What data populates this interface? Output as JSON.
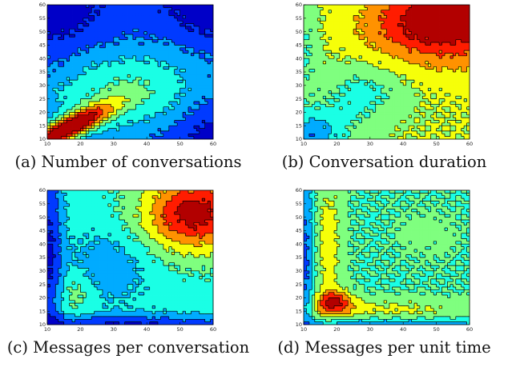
{
  "charts": [
    {
      "id": "a",
      "caption": "(a) Number of conversations",
      "chart_data": {
        "type": "heatmap",
        "title": "",
        "xlabel": "",
        "ylabel": "",
        "xlim": [
          10,
          60
        ],
        "ylim": [
          10,
          60
        ],
        "x_ticks": [
          10,
          20,
          30,
          40,
          50,
          60
        ],
        "y_ticks": [
          10,
          15,
          20,
          25,
          30,
          35,
          40,
          45,
          50,
          55,
          60
        ],
        "levels": 9,
        "colormap": "jet",
        "field": {
          "base": 0.16,
          "bumps": [
            {
              "x": 15,
              "y": 14,
              "a": 0.85,
              "sx": 9,
              "sy": 6,
              "rho": 0.85
            },
            {
              "x": 32,
              "y": 28,
              "a": 0.3,
              "sx": 18,
              "sy": 12,
              "rho": 0.25
            },
            {
              "x": 10,
              "y": 60,
              "a": -0.14,
              "sx": 10,
              "sy": 10,
              "rho": 0
            },
            {
              "x": 60,
              "y": 60,
              "a": -0.14,
              "sx": 10,
              "sy": 10,
              "rho": 0
            },
            {
              "x": 60,
              "y": 10,
              "a": -0.12,
              "sx": 8,
              "sy": 8,
              "rho": 0
            }
          ]
        }
      }
    },
    {
      "id": "b",
      "caption": "(b) Conversation duration",
      "chart_data": {
        "type": "heatmap",
        "title": "",
        "xlabel": "",
        "ylabel": "",
        "xlim": [
          10,
          60
        ],
        "ylim": [
          10,
          60
        ],
        "x_ticks": [
          10,
          20,
          30,
          40,
          50,
          60
        ],
        "y_ticks": [
          10,
          15,
          20,
          25,
          30,
          35,
          40,
          45,
          50,
          55,
          60
        ],
        "levels": 9,
        "colormap": "jet",
        "field": {
          "base": 0.56,
          "bumps": [
            {
              "x": 56,
              "y": 57,
              "a": 0.42,
              "sx": 14,
              "sy": 12,
              "rho": 0
            },
            {
              "x": 40,
              "y": 52,
              "a": 0.14,
              "sx": 12,
              "sy": 8,
              "rho": 0
            },
            {
              "x": 27,
              "y": 27,
              "a": -0.16,
              "sx": 9,
              "sy": 8,
              "rho": 0
            },
            {
              "x": 12,
              "y": 12,
              "a": -0.3,
              "sx": 7,
              "sy": 6,
              "rho": 0
            },
            {
              "x": 10,
              "y": 45,
              "a": -0.12,
              "sx": 3,
              "sy": 14,
              "rho": 0
            }
          ]
        }
      }
    },
    {
      "id": "c",
      "caption": "(c) Messages per conversation",
      "chart_data": {
        "type": "heatmap",
        "title": "",
        "xlabel": "",
        "ylabel": "",
        "xlim": [
          10,
          60
        ],
        "ylim": [
          10,
          60
        ],
        "x_ticks": [
          10,
          20,
          30,
          40,
          50,
          60
        ],
        "y_ticks": [
          10,
          15,
          20,
          25,
          30,
          35,
          40,
          45,
          50,
          55,
          60
        ],
        "levels": 9,
        "colormap": "jet",
        "field": {
          "base": 0.4,
          "bumps": [
            {
              "x": 54,
              "y": 52,
              "a": 0.55,
              "sx": 11,
              "sy": 10,
              "rho": 0
            },
            {
              "x": 28,
              "y": 32,
              "a": -0.14,
              "sx": 9,
              "sy": 10,
              "rho": 0
            },
            {
              "x": 10,
              "y": 38,
              "a": -0.3,
              "sx": 3,
              "sy": 30,
              "rho": 0
            },
            {
              "x": 36,
              "y": 10,
              "a": -0.3,
              "sx": 30,
              "sy": 3,
              "rho": 0
            },
            {
              "x": 18,
              "y": 22,
              "a": 0.12,
              "sx": 4,
              "sy": 6,
              "rho": 0
            }
          ]
        }
      }
    },
    {
      "id": "d",
      "caption": "(d) Messages per unit time",
      "chart_data": {
        "type": "heatmap",
        "title": "",
        "xlabel": "",
        "ylabel": "",
        "xlim": [
          10,
          60
        ],
        "ylim": [
          10,
          60
        ],
        "x_ticks": [
          10,
          20,
          30,
          40,
          50,
          60
        ],
        "y_ticks": [
          10,
          15,
          20,
          25,
          30,
          35,
          40,
          45,
          50,
          55,
          60
        ],
        "levels": 9,
        "colormap": "jet",
        "field": {
          "base": 0.44,
          "bumps": [
            {
              "x": 19,
              "y": 19,
              "a": 0.38,
              "sx": 4,
              "sy": 3,
              "rho": 0
            },
            {
              "x": 17,
              "y": 40,
              "a": 0.18,
              "sx": 3,
              "sy": 18,
              "rho": 0
            },
            {
              "x": 35,
              "y": 16,
              "a": 0.14,
              "sx": 20,
              "sy": 3,
              "rho": 0
            },
            {
              "x": 10,
              "y": 35,
              "a": -0.26,
              "sx": 2,
              "sy": 25,
              "rho": 0
            },
            {
              "x": 35,
              "y": 10,
              "a": -0.24,
              "sx": 25,
              "sy": 2,
              "rho": 0
            },
            {
              "x": 47,
              "y": 44,
              "a": 0.05,
              "sx": 6,
              "sy": 6,
              "rho": 0
            }
          ]
        }
      }
    }
  ]
}
